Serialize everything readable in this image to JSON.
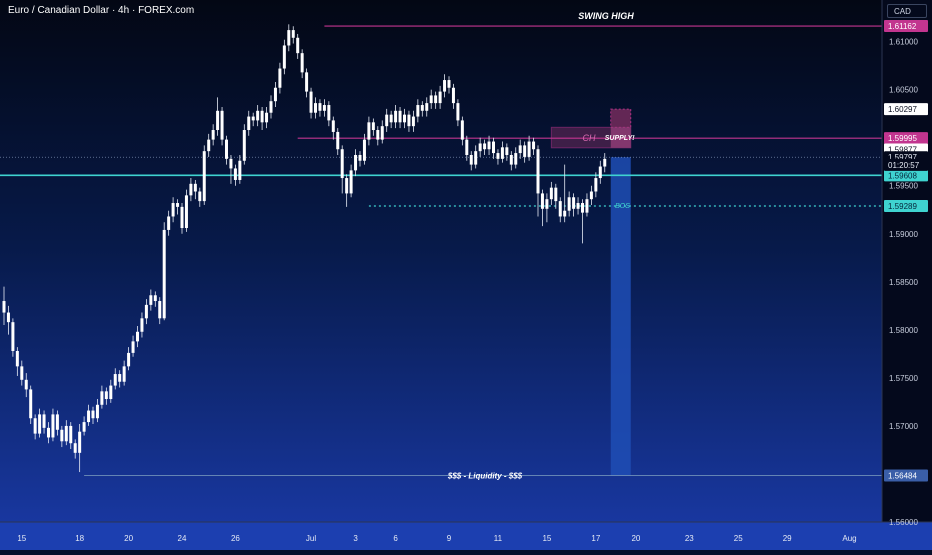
{
  "title": "Euro / Canadian Dollar · 4h · FOREX.com",
  "currency": "CAD",
  "colors": {
    "bull": "#ffffff",
    "bear": "#ffffff",
    "magenta": "#c2358f",
    "cyan": "#3fd3d0",
    "supply_fill": "#6e2a5a",
    "target_fill": "#1e4db5",
    "price_label_bg": "#ffffff"
  },
  "chart_data": {
    "type": "candlestick",
    "timeframe": "4h",
    "ylim": [
      1.56,
      1.6135
    ],
    "y_ticks": [
      {
        "label": "1.61000",
        "value": 1.61
      },
      {
        "label": "1.60500",
        "value": 1.605
      },
      {
        "label": "1.60000",
        "value": 1.6
      },
      {
        "label": "1.59500",
        "value": 1.595
      },
      {
        "label": "1.59000",
        "value": 1.59
      },
      {
        "label": "1.58500",
        "value": 1.585
      },
      {
        "label": "1.58000",
        "value": 1.58
      },
      {
        "label": "1.57500",
        "value": 1.575
      },
      {
        "label": "1.57000",
        "value": 1.57
      },
      {
        "label": "1.56484",
        "value": 1.56484
      },
      {
        "label": "1.56000",
        "value": 1.56
      }
    ],
    "x_ticks": [
      {
        "label": "15",
        "index": 4
      },
      {
        "label": "18",
        "index": 17
      },
      {
        "label": "20",
        "index": 28
      },
      {
        "label": "24",
        "index": 40
      },
      {
        "label": "26",
        "index": 52
      },
      {
        "label": "Jul",
        "index": 69
      },
      {
        "label": "3",
        "index": 79
      },
      {
        "label": "6",
        "index": 88
      },
      {
        "label": "9",
        "index": 100
      },
      {
        "label": "11",
        "index": 111
      },
      {
        "label": "15",
        "index": 122
      },
      {
        "label": "17",
        "index": 133
      },
      {
        "label": "20",
        "index": 142
      },
      {
        "label": "23",
        "index": 154
      },
      {
        "label": "25",
        "index": 165
      },
      {
        "label": "29",
        "index": 176
      },
      {
        "label": "Aug",
        "index": 190
      }
    ],
    "candles": [
      [
        1.583,
        1.5818,
        1.5845,
        1.5805
      ],
      [
        1.5818,
        1.5808,
        1.5825,
        1.5795
      ],
      [
        1.5808,
        1.5778,
        1.5812,
        1.5772
      ],
      [
        1.5778,
        1.5762,
        1.5782,
        1.5752
      ],
      [
        1.5762,
        1.5748,
        1.5768,
        1.5742
      ],
      [
        1.5748,
        1.5738,
        1.5755,
        1.573
      ],
      [
        1.5738,
        1.5708,
        1.5742,
        1.5702
      ],
      [
        1.5708,
        1.5692,
        1.5712,
        1.5686
      ],
      [
        1.5692,
        1.5712,
        1.5718,
        1.5688
      ],
      [
        1.5712,
        1.5698,
        1.5716,
        1.5692
      ],
      [
        1.5698,
        1.5688,
        1.5704,
        1.5682
      ],
      [
        1.5688,
        1.5712,
        1.5718,
        1.5684
      ],
      [
        1.5712,
        1.5696,
        1.5716,
        1.569
      ],
      [
        1.5696,
        1.5684,
        1.57,
        1.5678
      ],
      [
        1.5684,
        1.57,
        1.5706,
        1.568
      ],
      [
        1.57,
        1.5682,
        1.5704,
        1.5676
      ],
      [
        1.5682,
        1.5672,
        1.5686,
        1.5666
      ],
      [
        1.5672,
        1.5694,
        1.5702,
        1.5652
      ],
      [
        1.5694,
        1.5704,
        1.571,
        1.569
      ],
      [
        1.5704,
        1.5716,
        1.5722,
        1.57
      ],
      [
        1.5716,
        1.5708,
        1.572,
        1.5702
      ],
      [
        1.5708,
        1.5722,
        1.5728,
        1.5704
      ],
      [
        1.5722,
        1.5736,
        1.5742,
        1.5718
      ],
      [
        1.5736,
        1.5728,
        1.574,
        1.5722
      ],
      [
        1.5728,
        1.5742,
        1.5748,
        1.5724
      ],
      [
        1.5742,
        1.5754,
        1.576,
        1.5738
      ],
      [
        1.5754,
        1.5746,
        1.5758,
        1.574
      ],
      [
        1.5746,
        1.5762,
        1.5768,
        1.5742
      ],
      [
        1.5762,
        1.5776,
        1.5782,
        1.5758
      ],
      [
        1.5776,
        1.5788,
        1.5794,
        1.5772
      ],
      [
        1.5788,
        1.5798,
        1.5804,
        1.5782
      ],
      [
        1.5798,
        1.5812,
        1.5818,
        1.5792
      ],
      [
        1.5812,
        1.5826,
        1.5832,
        1.5806
      ],
      [
        1.5826,
        1.5836,
        1.5842,
        1.582
      ],
      [
        1.5836,
        1.583,
        1.584,
        1.5824
      ],
      [
        1.583,
        1.5812,
        1.5834,
        1.5806
      ],
      [
        1.5812,
        1.5904,
        1.5912,
        1.581
      ],
      [
        1.5904,
        1.5918,
        1.5924,
        1.5898
      ],
      [
        1.5918,
        1.5932,
        1.5938,
        1.5912
      ],
      [
        1.5932,
        1.5928,
        1.5936,
        1.592
      ],
      [
        1.5928,
        1.5906,
        1.5932,
        1.59
      ],
      [
        1.5906,
        1.594,
        1.5946,
        1.5902
      ],
      [
        1.594,
        1.5952,
        1.5958,
        1.5934
      ],
      [
        1.5952,
        1.5944,
        1.5956,
        1.5936
      ],
      [
        1.5944,
        1.5934,
        1.5948,
        1.5928
      ],
      [
        1.5934,
        1.5986,
        1.5992,
        1.593
      ],
      [
        1.5986,
        1.5998,
        1.6004,
        1.598
      ],
      [
        1.5998,
        1.6008,
        1.6014,
        1.5992
      ],
      [
        1.6008,
        1.6028,
        1.6042,
        1.6002
      ],
      [
        1.6028,
        1.5998,
        1.6032,
        1.5992
      ],
      [
        1.5998,
        1.5978,
        1.6002,
        1.5972
      ],
      [
        1.5978,
        1.5968,
        1.5982,
        1.5952
      ],
      [
        1.5968,
        1.5956,
        1.5972,
        1.595
      ],
      [
        1.5956,
        1.5976,
        1.5982,
        1.5952
      ],
      [
        1.5976,
        1.6008,
        1.6014,
        1.5972
      ],
      [
        1.6008,
        1.6022,
        1.6028,
        1.6002
      ],
      [
        1.6022,
        1.6018,
        1.6026,
        1.6012
      ],
      [
        1.6018,
        1.6028,
        1.6034,
        1.6012
      ],
      [
        1.6028,
        1.6016,
        1.6032,
        1.6008
      ],
      [
        1.6016,
        1.6026,
        1.6032,
        1.601
      ],
      [
        1.6026,
        1.6038,
        1.6044,
        1.602
      ],
      [
        1.6038,
        1.6052,
        1.6058,
        1.6032
      ],
      [
        1.6052,
        1.6072,
        1.6078,
        1.6046
      ],
      [
        1.6072,
        1.6096,
        1.6102,
        1.6066
      ],
      [
        1.6096,
        1.6112,
        1.6118,
        1.609
      ],
      [
        1.6112,
        1.6104,
        1.6116,
        1.6098
      ],
      [
        1.6104,
        1.6088,
        1.6108,
        1.6082
      ],
      [
        1.6088,
        1.6068,
        1.6092,
        1.6062
      ],
      [
        1.6068,
        1.6048,
        1.6072,
        1.6042
      ],
      [
        1.6048,
        1.6026,
        1.6052,
        1.602
      ],
      [
        1.6026,
        1.6036,
        1.6042,
        1.602
      ],
      [
        1.6036,
        1.6028,
        1.604,
        1.6022
      ],
      [
        1.6028,
        1.6034,
        1.604,
        1.6022
      ],
      [
        1.6034,
        1.6018,
        1.6038,
        1.6012
      ],
      [
        1.6018,
        1.6006,
        1.6022,
        1.5998
      ],
      [
        1.6006,
        1.5988,
        1.601,
        1.5982
      ],
      [
        1.5988,
        1.5958,
        1.5992,
        1.5942
      ],
      [
        1.5958,
        1.5942,
        1.5962,
        1.5928
      ],
      [
        1.5942,
        1.5966,
        1.5972,
        1.5938
      ],
      [
        1.5966,
        1.5982,
        1.5988,
        1.596
      ],
      [
        1.5982,
        1.5976,
        1.5986,
        1.597
      ],
      [
        1.5976,
        1.5998,
        1.6004,
        1.5972
      ],
      [
        1.5998,
        1.6016,
        1.6022,
        1.5992
      ],
      [
        1.6016,
        1.6008,
        1.602,
        1.6002
      ],
      [
        1.6008,
        1.5998,
        1.6012,
        1.5992
      ],
      [
        1.5998,
        1.6012,
        1.6018,
        1.5994
      ],
      [
        1.6012,
        1.6024,
        1.603,
        1.6006
      ],
      [
        1.6024,
        1.6016,
        1.6028,
        1.601
      ],
      [
        1.6016,
        1.6028,
        1.6034,
        1.601
      ],
      [
        1.6028,
        1.6016,
        1.6032,
        1.601
      ],
      [
        1.6016,
        1.6024,
        1.603,
        1.601
      ],
      [
        1.6024,
        1.6012,
        1.6028,
        1.6006
      ],
      [
        1.6012,
        1.6022,
        1.6028,
        1.6006
      ],
      [
        1.6022,
        1.6034,
        1.604,
        1.6016
      ],
      [
        1.6034,
        1.6028,
        1.6038,
        1.6022
      ],
      [
        1.6028,
        1.6036,
        1.6042,
        1.6022
      ],
      [
        1.6036,
        1.6044,
        1.605,
        1.603
      ],
      [
        1.6044,
        1.6036,
        1.6048,
        1.603
      ],
      [
        1.6036,
        1.6048,
        1.6054,
        1.603
      ],
      [
        1.6048,
        1.606,
        1.6066,
        1.6042
      ],
      [
        1.606,
        1.6052,
        1.6064,
        1.6046
      ],
      [
        1.6052,
        1.6036,
        1.6056,
        1.603
      ],
      [
        1.6036,
        1.6018,
        1.604,
        1.6012
      ],
      [
        1.6018,
        1.5998,
        1.6022,
        1.5992
      ],
      [
        1.5998,
        1.5982,
        1.6002,
        1.5976
      ],
      [
        1.5982,
        1.5972,
        1.5986,
        1.5966
      ],
      [
        1.5972,
        1.5986,
        1.5992,
        1.5968
      ],
      [
        1.5986,
        1.5994,
        1.6,
        1.598
      ],
      [
        1.5994,
        1.5988,
        1.5998,
        1.5982
      ],
      [
        1.5988,
        1.5996,
        1.6002,
        1.5982
      ],
      [
        1.5996,
        1.5984,
        1.6,
        1.5978
      ],
      [
        1.5984,
        1.5978,
        1.5988,
        1.5972
      ],
      [
        1.5978,
        1.599,
        1.5996,
        1.5974
      ],
      [
        1.599,
        1.5982,
        1.5994,
        1.5976
      ],
      [
        1.5982,
        1.5972,
        1.5986,
        1.5966
      ],
      [
        1.5972,
        1.5984,
        1.599,
        1.5968
      ],
      [
        1.5984,
        1.5992,
        1.5998,
        1.5978
      ],
      [
        1.5992,
        1.598,
        1.5996,
        1.5974
      ],
      [
        1.598,
        1.5996,
        1.6002,
        1.5976
      ],
      [
        1.5996,
        1.5988,
        1.6,
        1.5982
      ],
      [
        1.5988,
        1.5942,
        1.5992,
        1.5918
      ],
      [
        1.5942,
        1.5926,
        1.5946,
        1.5908
      ],
      [
        1.5926,
        1.5936,
        1.5942,
        1.5912
      ],
      [
        1.5936,
        1.5948,
        1.5954,
        1.593
      ],
      [
        1.5948,
        1.5934,
        1.5952,
        1.5926
      ],
      [
        1.5934,
        1.5918,
        1.5938,
        1.5912
      ],
      [
        1.5918,
        1.5924,
        1.5972,
        1.5912
      ],
      [
        1.5924,
        1.5938,
        1.5944,
        1.5918
      ],
      [
        1.5938,
        1.5926,
        1.5942,
        1.5918
      ],
      [
        1.5926,
        1.5932,
        1.5938,
        1.592
      ],
      [
        1.5932,
        1.5922,
        1.5936,
        1.589
      ],
      [
        1.5922,
        1.5936,
        1.5942,
        1.5918
      ],
      [
        1.5936,
        1.5944,
        1.595,
        1.593
      ],
      [
        1.5944,
        1.5958,
        1.5964,
        1.5938
      ],
      [
        1.5958,
        1.597,
        1.5976,
        1.5952
      ],
      [
        1.597,
        1.5978,
        1.5984,
        1.5964
      ]
    ],
    "levels": [
      {
        "name": "swing-high",
        "label": "SWING HIGH",
        "value": 1.61162,
        "price_label": "1.61162",
        "color": "#c2358f"
      },
      {
        "name": "supply-line",
        "value": 1.59995,
        "price_label": "1.59995",
        "color": "#c2358f"
      },
      {
        "name": "cyan-level",
        "value": 1.59608,
        "price_label": "1.59608",
        "color": "#3fd3d0"
      },
      {
        "name": "bos-line",
        "label": "BOS",
        "value": 1.59289,
        "price_label": "1.59289",
        "color": "#3fd3d0"
      },
      {
        "name": "liquidity-line",
        "label": "$$$ - Liquidity - $$$",
        "value": 1.56484,
        "price_label": "1.56484",
        "color": "#7fa0c0"
      }
    ],
    "supply_zone": {
      "label": "SUPPLY!",
      "top": 1.60108,
      "bottom": 1.59895
    },
    "choch_label": "CH",
    "price_labels": [
      {
        "text": "1.60297",
        "value": 1.60297
      },
      {
        "text": "1.59877",
        "value": 1.59877
      },
      {
        "text": "1.59797",
        "value": 1.59797
      },
      {
        "text": "01:20:57",
        "value": 1.59717
      }
    ]
  }
}
